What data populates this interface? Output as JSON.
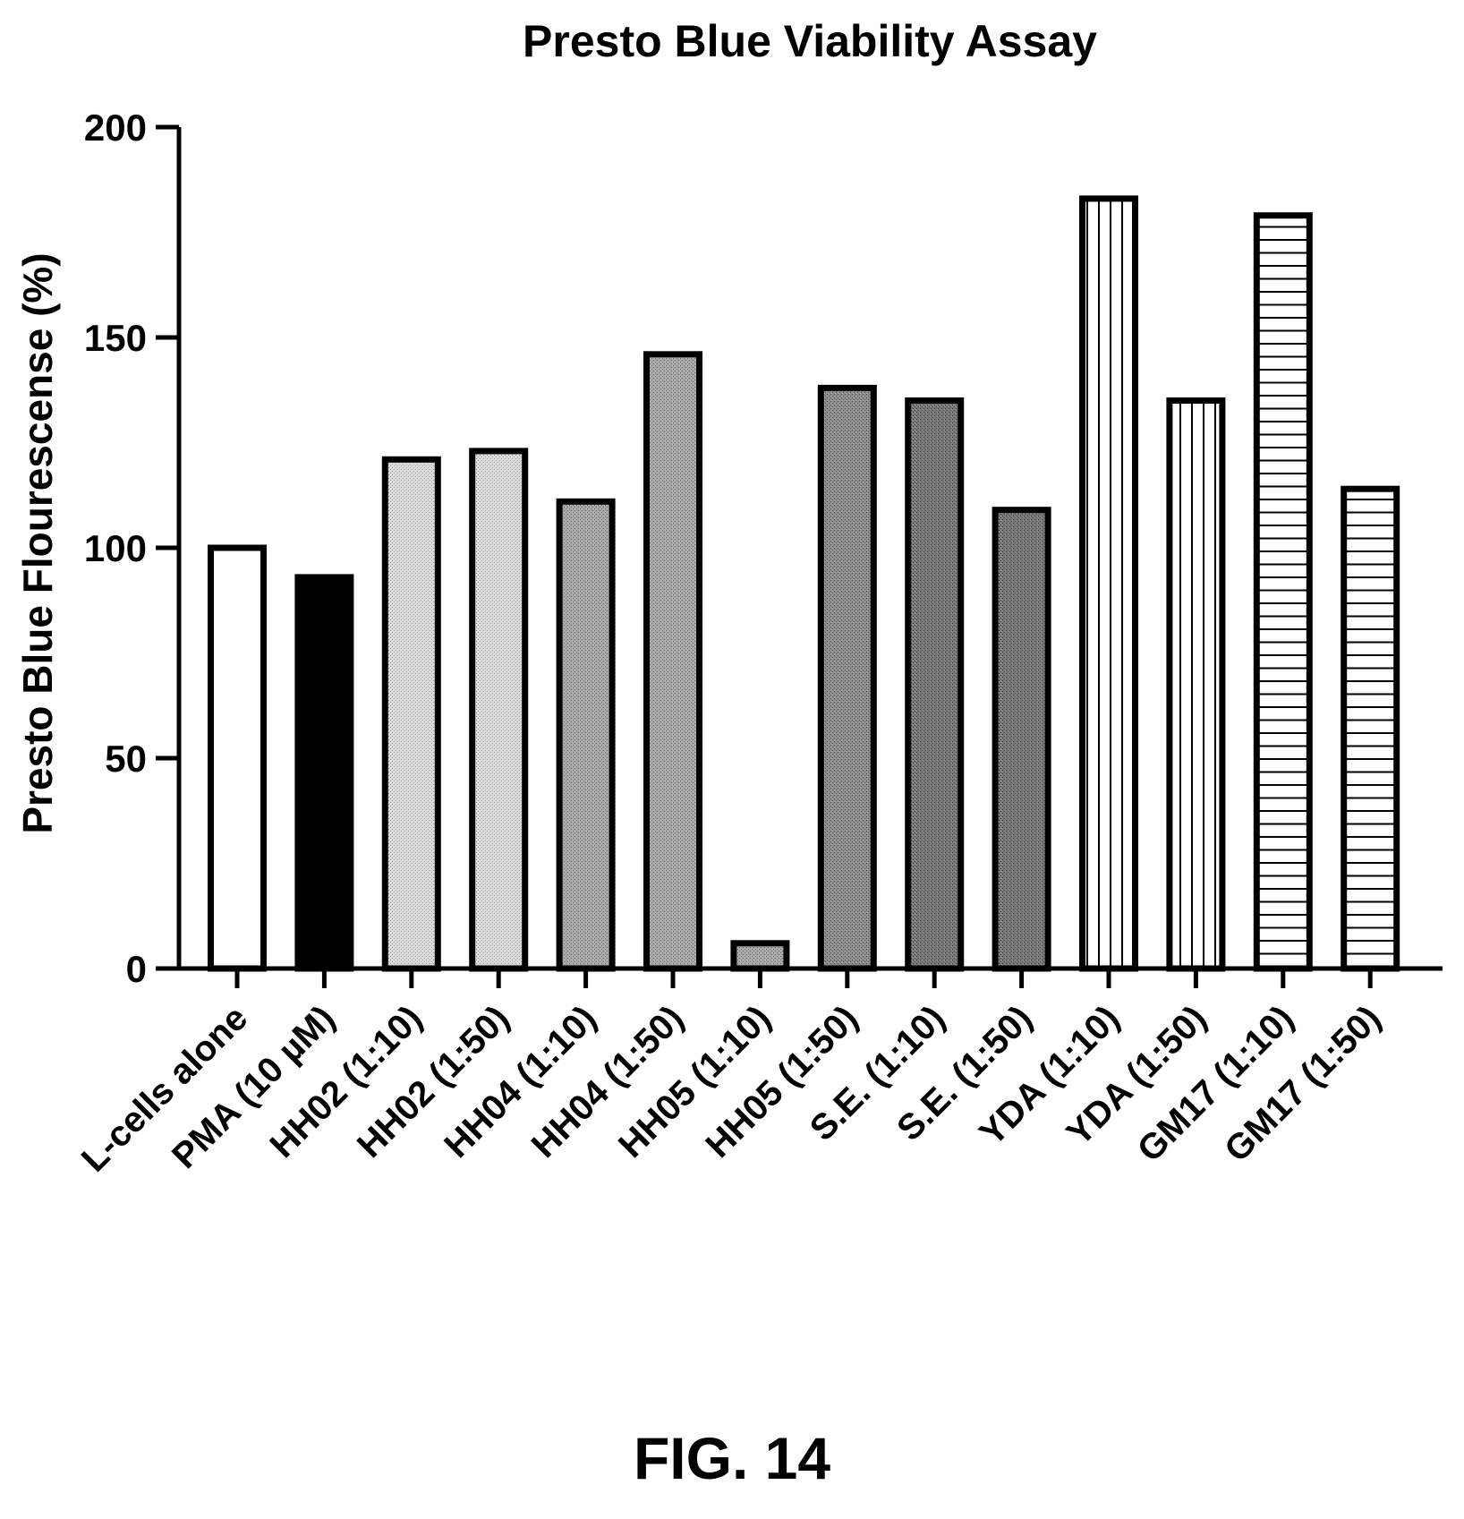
{
  "chart_data": {
    "type": "bar",
    "title": "Presto Blue Viability Assay",
    "xlabel": "",
    "ylabel": "Presto Blue Flourescense (%)",
    "ylim": [
      0,
      200
    ],
    "yticks": [
      0,
      50,
      100,
      150,
      200
    ],
    "grid": false,
    "legend": "none",
    "categories": [
      "L-cells alone",
      "PMA (10 µM)",
      "HH02 (1:10)",
      "HH02 (1:50)",
      "HH04 (1:10)",
      "HH04 (1:50)",
      "HH05 (1:10)",
      "HH05 (1:50)",
      "S.E. (1:10)",
      "S.E. (1:50)",
      "YDA (1:10)",
      "YDA (1:50)",
      "GM17 (1:10)",
      "GM17 (1:50)"
    ],
    "values": [
      100,
      93,
      121,
      123,
      111,
      146,
      6,
      138,
      135,
      109,
      183,
      135,
      179,
      114
    ],
    "fills": [
      "white",
      "black",
      "stipple-light",
      "stipple-light",
      "stipple-mid",
      "stipple-mid",
      "stipple-mid",
      "stipple-dark",
      "stipple-darker",
      "stipple-darker",
      "vertical-lines",
      "vertical-lines",
      "horizontal-lines",
      "horizontal-lines"
    ]
  },
  "figure_label": "FIG. 14"
}
